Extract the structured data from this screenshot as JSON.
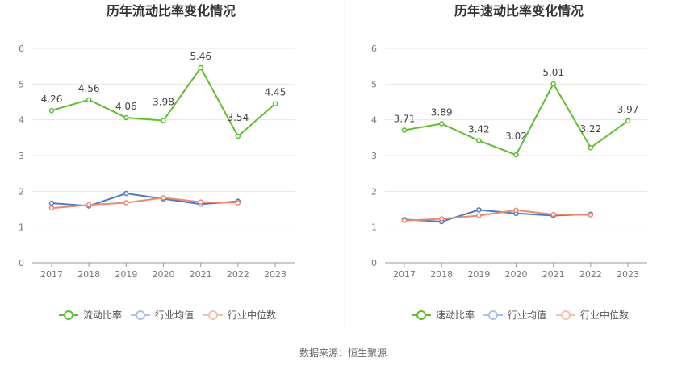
{
  "source_text": "数据来源：恒生聚源",
  "legend_labels": {
    "industry_avg": "行业均值",
    "industry_median": "行业中位数"
  },
  "colors": {
    "main": "#5cc02b",
    "industry_avg": "#4a79d3",
    "industry_median": "#f0896a",
    "grid": "#e6e6e6",
    "axis": "#999999"
  },
  "chart_data": [
    {
      "type": "line",
      "title": "历年流动比率变化情况",
      "x": [
        "2017",
        "2018",
        "2019",
        "2020",
        "2021",
        "2022",
        "2023"
      ],
      "ylim": [
        0,
        6
      ],
      "yticks": [
        0,
        1,
        2,
        3,
        4,
        5,
        6
      ],
      "grid": true,
      "legend_position": "bottom",
      "series": [
        {
          "name": "流动比率",
          "key": "main",
          "values": [
            4.26,
            4.56,
            4.06,
            3.98,
            5.46,
            3.54,
            4.45
          ],
          "labels": [
            "4.26",
            "4.56",
            "4.06",
            "3.98",
            "5.46",
            "3.54",
            "4.45"
          ]
        },
        {
          "name": "行业均值",
          "key": "industry_avg",
          "values": [
            1.67,
            1.59,
            1.94,
            1.79,
            1.64,
            1.72,
            null
          ]
        },
        {
          "name": "行业中位数",
          "key": "industry_median",
          "values": [
            1.53,
            1.62,
            1.68,
            1.82,
            1.7,
            1.68,
            null
          ]
        }
      ]
    },
    {
      "type": "line",
      "title": "历年速动比率变化情况",
      "x": [
        "2017",
        "2018",
        "2019",
        "2020",
        "2021",
        "2022",
        "2023"
      ],
      "ylim": [
        0,
        6
      ],
      "yticks": [
        0,
        1,
        2,
        3,
        4,
        5,
        6
      ],
      "grid": true,
      "legend_position": "bottom",
      "series": [
        {
          "name": "速动比率",
          "key": "main",
          "values": [
            3.71,
            3.89,
            3.42,
            3.02,
            5.01,
            3.22,
            3.97
          ],
          "labels": [
            "3.71",
            "3.89",
            "3.42",
            "3.02",
            "5.01",
            "3.22",
            "3.97"
          ]
        },
        {
          "name": "行业均值",
          "key": "industry_avg",
          "values": [
            1.21,
            1.15,
            1.48,
            1.38,
            1.32,
            1.36,
            null
          ]
        },
        {
          "name": "行业中位数",
          "key": "industry_median",
          "values": [
            1.18,
            1.23,
            1.32,
            1.47,
            1.35,
            1.34,
            null
          ]
        }
      ]
    }
  ]
}
